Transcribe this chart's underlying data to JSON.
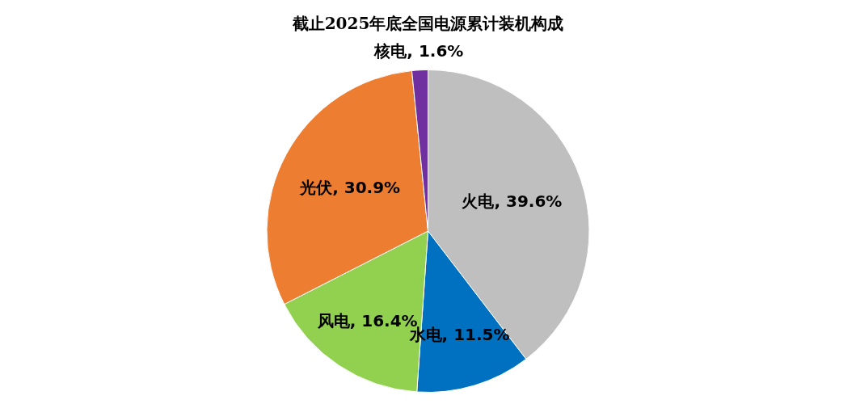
{
  "chart_data": {
    "type": "pie",
    "title": "截止2025年底全国电源累计装机构成",
    "categories": [
      "火电",
      "水电",
      "风电",
      "光伏",
      "核电"
    ],
    "values": [
      39.6,
      11.5,
      16.4,
      30.9,
      1.6
    ],
    "value_labels": [
      ", 39.6%",
      ", 11.5%",
      ", 16.4%",
      ", 30.9%",
      ", 1.6%"
    ],
    "colors": [
      "#bfbfbf",
      "#0070c0",
      "#92d050",
      "#ed7d31",
      "#7030a0"
    ],
    "legend": false
  }
}
